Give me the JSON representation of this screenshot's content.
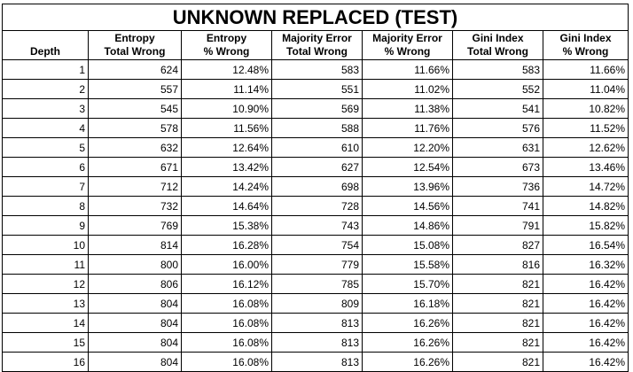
{
  "title": "UNKNOWN REPLACED (TEST)",
  "headers": [
    {
      "line1": "",
      "line2": "Depth"
    },
    {
      "line1": "Entropy",
      "line2": "Total Wrong"
    },
    {
      "line1": "Entropy",
      "line2": "% Wrong"
    },
    {
      "line1": "Majority Error",
      "line2": "Total Wrong"
    },
    {
      "line1": "Majority Error",
      "line2": "% Wrong"
    },
    {
      "line1": "Gini Index",
      "line2": "Total Wrong"
    },
    {
      "line1": "Gini Index",
      "line2": "% Wrong"
    }
  ],
  "rows": [
    [
      "1",
      "624",
      "12.48%",
      "583",
      "11.66%",
      "583",
      "11.66%"
    ],
    [
      "2",
      "557",
      "11.14%",
      "551",
      "11.02%",
      "552",
      "11.04%"
    ],
    [
      "3",
      "545",
      "10.90%",
      "569",
      "11.38%",
      "541",
      "10.82%"
    ],
    [
      "4",
      "578",
      "11.56%",
      "588",
      "11.76%",
      "576",
      "11.52%"
    ],
    [
      "5",
      "632",
      "12.64%",
      "610",
      "12.20%",
      "631",
      "12.62%"
    ],
    [
      "6",
      "671",
      "13.42%",
      "627",
      "12.54%",
      "673",
      "13.46%"
    ],
    [
      "7",
      "712",
      "14.24%",
      "698",
      "13.96%",
      "736",
      "14.72%"
    ],
    [
      "8",
      "732",
      "14.64%",
      "728",
      "14.56%",
      "741",
      "14.82%"
    ],
    [
      "9",
      "769",
      "15.38%",
      "743",
      "14.86%",
      "791",
      "15.82%"
    ],
    [
      "10",
      "814",
      "16.28%",
      "754",
      "15.08%",
      "827",
      "16.54%"
    ],
    [
      "11",
      "800",
      "16.00%",
      "779",
      "15.58%",
      "816",
      "16.32%"
    ],
    [
      "12",
      "806",
      "16.12%",
      "785",
      "15.70%",
      "821",
      "16.42%"
    ],
    [
      "13",
      "804",
      "16.08%",
      "809",
      "16.18%",
      "821",
      "16.42%"
    ],
    [
      "14",
      "804",
      "16.08%",
      "813",
      "16.26%",
      "821",
      "16.42%"
    ],
    [
      "15",
      "804",
      "16.08%",
      "813",
      "16.26%",
      "821",
      "16.42%"
    ],
    [
      "16",
      "804",
      "16.08%",
      "813",
      "16.26%",
      "821",
      "16.42%"
    ]
  ]
}
